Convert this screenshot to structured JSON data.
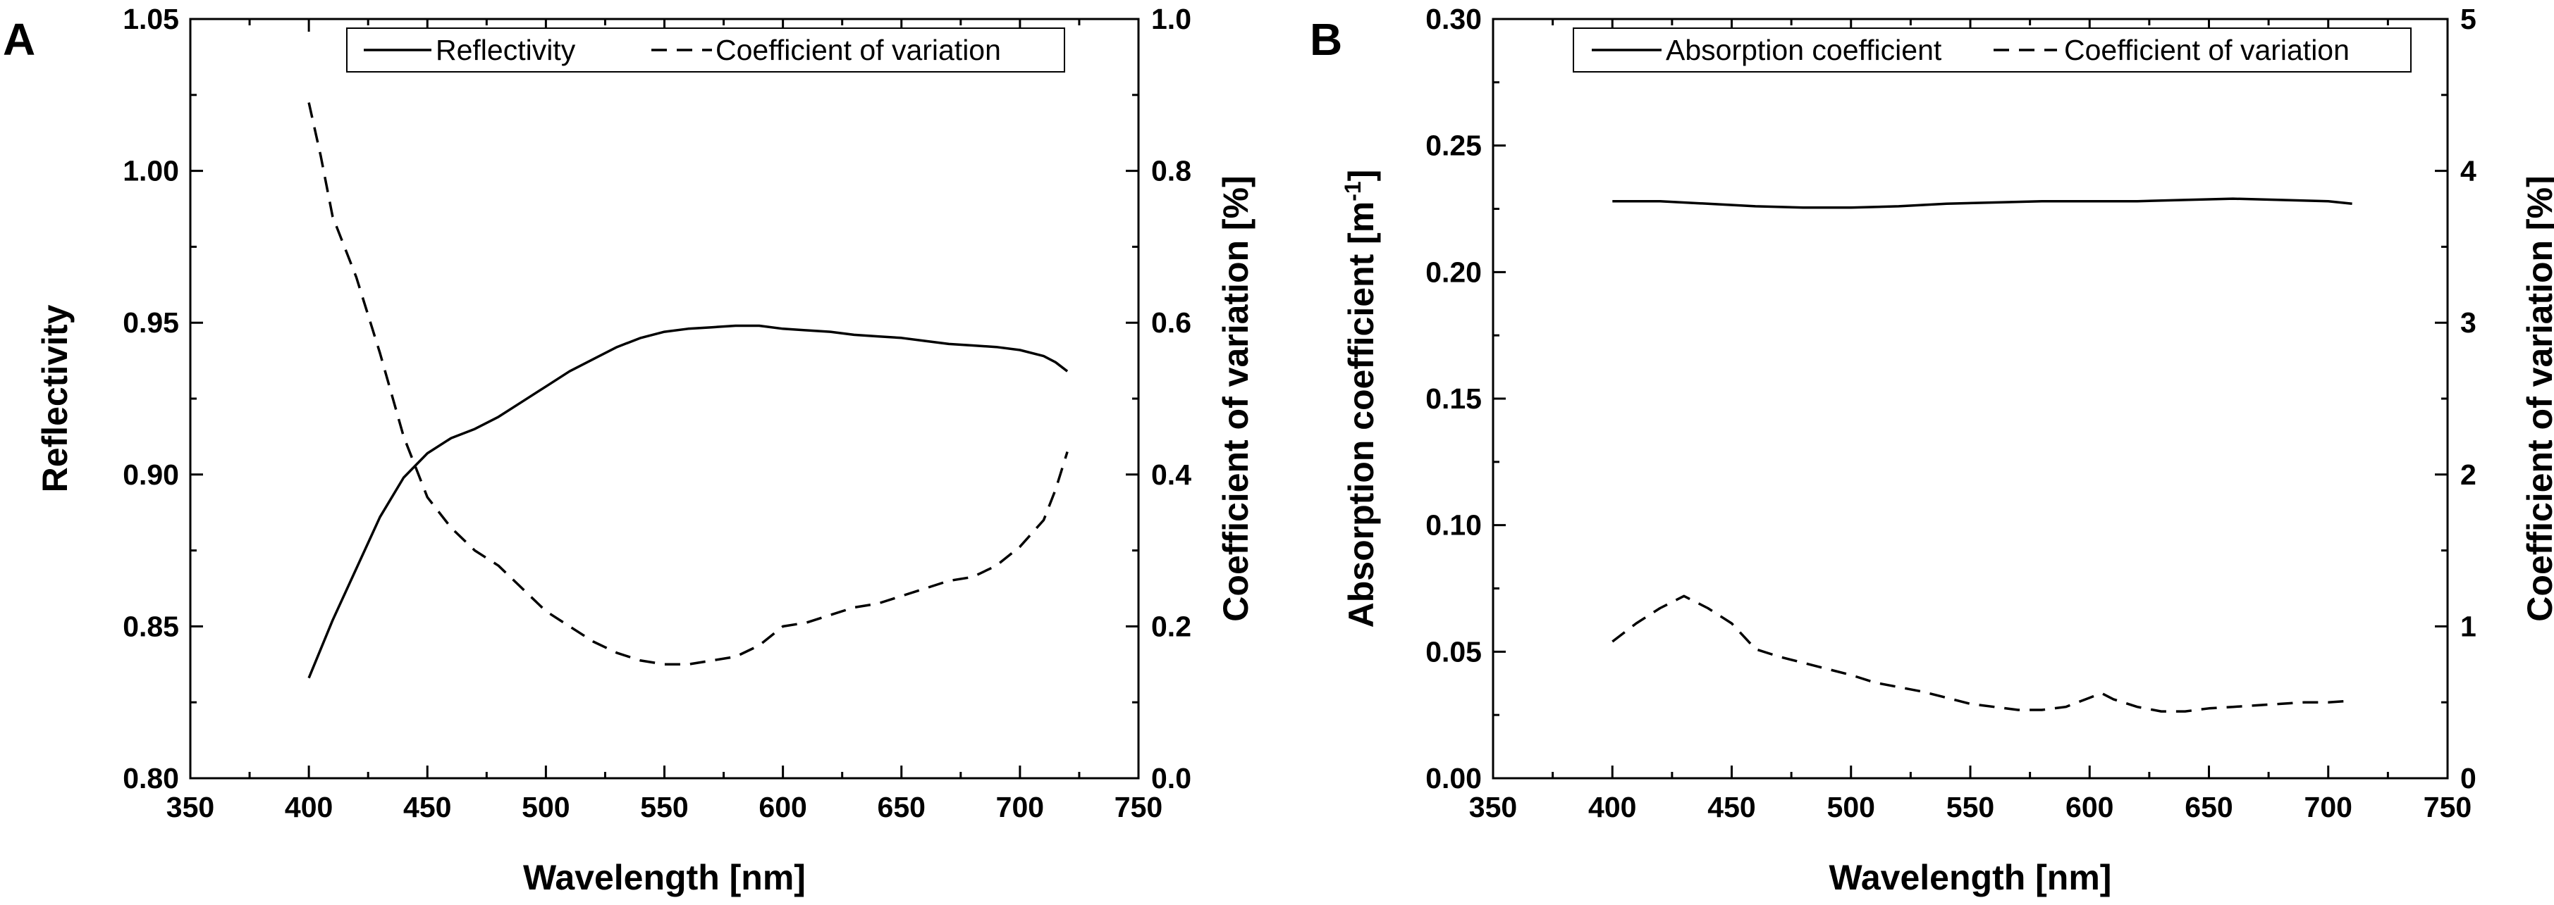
{
  "chart_data": [
    {
      "type": "line",
      "panel": "A",
      "xlabel": "Wavelength [nm]",
      "ylabel_left": "Reflectivity",
      "ylabel_right": "Coefficient of variation [%]",
      "xlim": [
        350,
        750
      ],
      "ylim_left": [
        0.8,
        1.05
      ],
      "ylim_right": [
        0.0,
        1.0
      ],
      "x_ticks": [
        "350",
        "400",
        "450",
        "500",
        "550",
        "600",
        "650",
        "700",
        "750"
      ],
      "y_left_ticks": [
        "0.80",
        "0.85",
        "0.90",
        "0.95",
        "1.00",
        "1.05"
      ],
      "y_right_ticks": [
        "0.0",
        "0.2",
        "0.4",
        "0.6",
        "0.8",
        "1.0"
      ],
      "legend": [
        "Reflectivity",
        "Coefficient of variation"
      ],
      "legend_position": "top-center",
      "series": [
        {
          "name": "Reflectivity",
          "axis": "left",
          "style": "solid",
          "x": [
            400,
            410,
            420,
            430,
            440,
            450,
            460,
            470,
            480,
            490,
            500,
            510,
            520,
            530,
            540,
            550,
            560,
            570,
            580,
            590,
            600,
            610,
            620,
            630,
            640,
            650,
            660,
            670,
            680,
            690,
            700,
            710,
            715,
            720
          ],
          "y": [
            0.833,
            0.852,
            0.869,
            0.886,
            0.899,
            0.907,
            0.912,
            0.915,
            0.919,
            0.924,
            0.929,
            0.934,
            0.938,
            0.942,
            0.945,
            0.947,
            0.948,
            0.9485,
            0.949,
            0.949,
            0.948,
            0.9475,
            0.947,
            0.946,
            0.9455,
            0.945,
            0.944,
            0.943,
            0.9425,
            0.942,
            0.941,
            0.939,
            0.937,
            0.934
          ]
        },
        {
          "name": "Coefficient of variation",
          "axis": "right",
          "style": "dashed",
          "x": [
            400,
            405,
            410,
            420,
            430,
            440,
            450,
            460,
            470,
            480,
            490,
            500,
            510,
            520,
            530,
            540,
            550,
            560,
            570,
            580,
            590,
            600,
            610,
            620,
            630,
            640,
            650,
            660,
            670,
            680,
            690,
            700,
            710,
            715,
            720
          ],
          "y": [
            0.89,
            0.82,
            0.74,
            0.66,
            0.56,
            0.45,
            0.37,
            0.33,
            0.3,
            0.28,
            0.25,
            0.22,
            0.2,
            0.18,
            0.165,
            0.155,
            0.15,
            0.15,
            0.155,
            0.16,
            0.175,
            0.2,
            0.205,
            0.215,
            0.225,
            0.23,
            0.24,
            0.25,
            0.26,
            0.265,
            0.28,
            0.305,
            0.34,
            0.38,
            0.43
          ]
        }
      ]
    },
    {
      "type": "line",
      "panel": "B",
      "xlabel": "Wavelength [nm]",
      "ylabel_left": "Absorption coefficient [m",
      "ylabel_left_sup": "-1",
      "ylabel_left_end": "]",
      "ylabel_right": "Coefficient of variation [%]",
      "xlim": [
        350,
        750
      ],
      "ylim_left": [
        0.0,
        0.3
      ],
      "ylim_right": [
        0,
        5
      ],
      "x_ticks": [
        "350",
        "400",
        "450",
        "500",
        "550",
        "600",
        "650",
        "700",
        "750"
      ],
      "y_left_ticks": [
        "0.00",
        "0.05",
        "0.10",
        "0.15",
        "0.20",
        "0.25",
        "0.30"
      ],
      "y_right_ticks": [
        "0",
        "1",
        "2",
        "3",
        "4",
        "5"
      ],
      "legend": [
        "Absorption coefficient",
        "Coefficient of variation"
      ],
      "legend_position": "top-center",
      "series": [
        {
          "name": "Absorption coefficient",
          "axis": "left",
          "style": "solid",
          "x": [
            400,
            420,
            440,
            460,
            480,
            500,
            520,
            540,
            560,
            580,
            600,
            620,
            640,
            660,
            680,
            700,
            710
          ],
          "y": [
            0.228,
            0.228,
            0.227,
            0.226,
            0.2255,
            0.2255,
            0.226,
            0.227,
            0.2275,
            0.228,
            0.228,
            0.228,
            0.2285,
            0.229,
            0.2285,
            0.228,
            0.227
          ]
        },
        {
          "name": "Coefficient of variation",
          "axis": "right",
          "style": "dashed",
          "x": [
            400,
            410,
            420,
            430,
            440,
            450,
            460,
            470,
            480,
            490,
            500,
            510,
            520,
            530,
            540,
            550,
            560,
            570,
            580,
            590,
            600,
            605,
            610,
            620,
            630,
            640,
            650,
            660,
            670,
            680,
            690,
            700,
            710
          ],
          "y": [
            0.9,
            1.02,
            1.12,
            1.2,
            1.12,
            1.02,
            0.85,
            0.8,
            0.76,
            0.72,
            0.68,
            0.63,
            0.6,
            0.57,
            0.53,
            0.49,
            0.47,
            0.45,
            0.45,
            0.47,
            0.53,
            0.56,
            0.52,
            0.47,
            0.44,
            0.44,
            0.46,
            0.47,
            0.48,
            0.49,
            0.5,
            0.5,
            0.51
          ]
        }
      ]
    }
  ]
}
